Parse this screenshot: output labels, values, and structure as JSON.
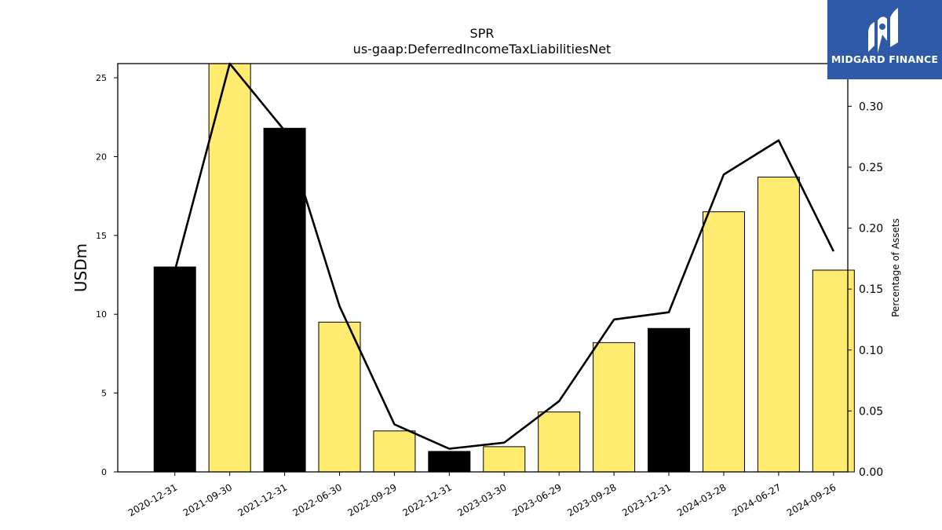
{
  "brand": {
    "name": "MIDGARD FINANCE",
    "mark_icon": "midgard-logo-icon",
    "background": "#2f5aa8"
  },
  "chart_data": {
    "type": "bar",
    "title": "SPR",
    "subtitle": "us-gaap:DeferredIncomeTaxLiabilitiesNet",
    "xlabel": "",
    "ylabel": "USDm",
    "y2label": "Percentage of Assets",
    "categories": [
      "2020-12-31",
      "2021-09-30",
      "2021-12-31",
      "2022-06-30",
      "2022-09-29",
      "2022-12-31",
      "2023-03-30",
      "2023-06-29",
      "2023-09-28",
      "2023-12-31",
      "2024-03-28",
      "2024-06-27",
      "2024-09-26"
    ],
    "series": [
      {
        "type": "bar",
        "axis": "left",
        "values": [
          13.0,
          26.0,
          21.8,
          9.5,
          2.6,
          1.3,
          1.6,
          3.8,
          8.2,
          9.1,
          16.5,
          18.7,
          12.8
        ],
        "colors": [
          "#000000",
          "#ffeb70",
          "#000000",
          "#ffeb70",
          "#ffeb70",
          "#000000",
          "#ffeb70",
          "#ffeb70",
          "#ffeb70",
          "#000000",
          "#ffeb70",
          "#ffeb70",
          "#ffeb70"
        ]
      },
      {
        "type": "line",
        "axis": "right",
        "color": "#000000",
        "values": [
          0.165,
          0.335,
          0.28,
          0.136,
          0.039,
          0.019,
          0.024,
          0.058,
          0.125,
          0.131,
          0.244,
          0.272,
          0.181
        ]
      }
    ],
    "ylim": [
      0,
      25.9
    ],
    "y2lim": [
      0,
      0.335
    ],
    "yticks": [
      0,
      5,
      10,
      15,
      20,
      25
    ],
    "y2ticks": [
      0.0,
      0.05,
      0.1,
      0.15,
      0.2,
      0.25,
      0.3
    ],
    "ytick_labels": [
      "0",
      "5",
      "10",
      "15",
      "20",
      "25"
    ],
    "y2tick_labels": [
      "0.00",
      "0.05",
      "0.10",
      "0.15",
      "0.20",
      "0.25",
      "0.30"
    ],
    "grid": false,
    "legend": "none"
  }
}
